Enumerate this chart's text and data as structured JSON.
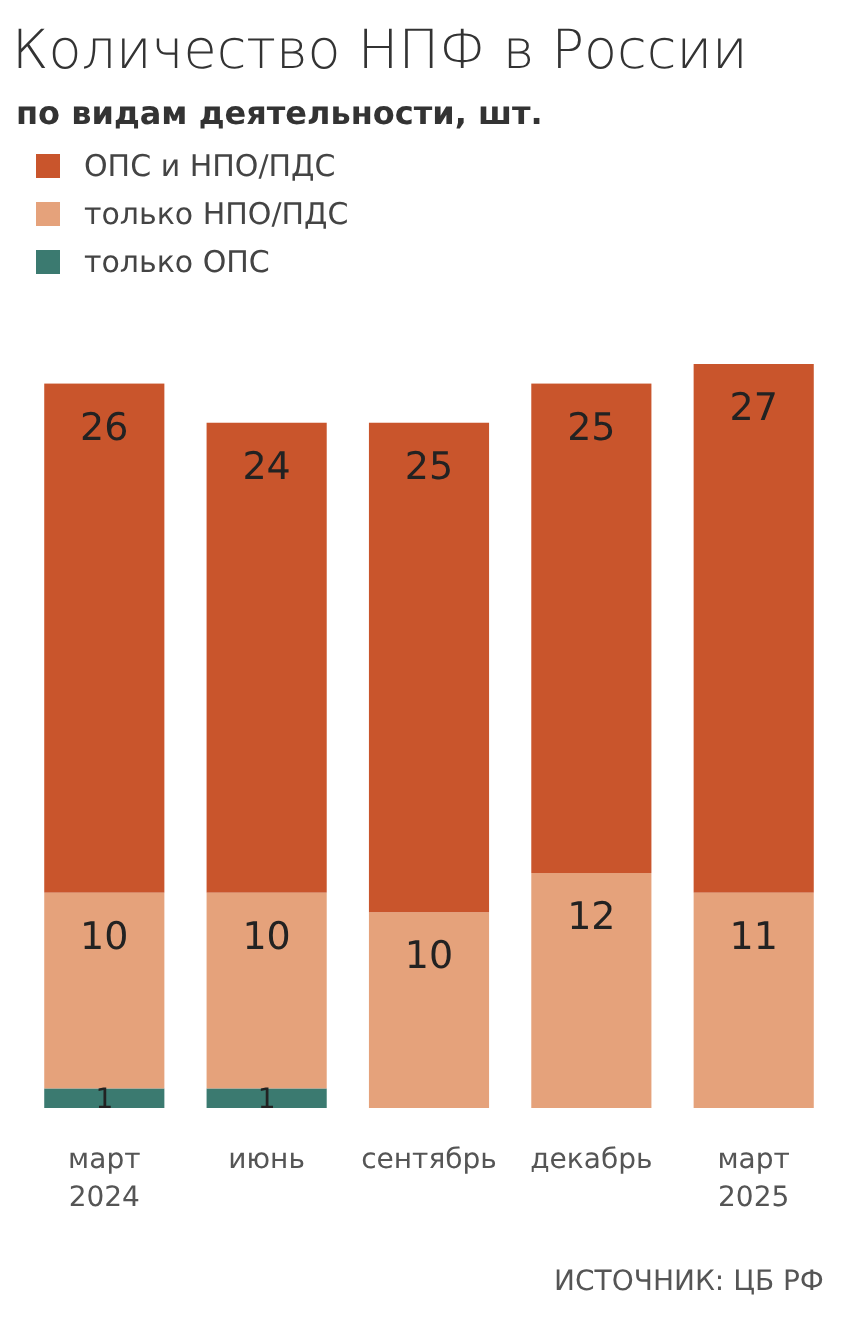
{
  "chart_data": {
    "type": "bar",
    "stacked": true,
    "title": "Количество НПФ в России",
    "subtitle": "по видам деятельности, шт.",
    "categories": [
      "март 2024",
      "июнь",
      "сентябрь",
      "декабрь",
      "март 2025"
    ],
    "series": [
      {
        "name": "только ОПС",
        "color": "#3b7a70",
        "values": [
          1,
          1,
          0,
          0,
          0
        ],
        "value_labels": [
          "1",
          "1",
          null,
          null,
          null
        ]
      },
      {
        "name": "только НПО/ПДС",
        "color": "#e5a27b",
        "values": [
          10,
          10,
          10,
          12,
          11
        ],
        "value_labels": [
          "10",
          "10",
          "10",
          "12",
          "11"
        ]
      },
      {
        "name": "ОПС и НПО/ПДС",
        "color": "#c9552c",
        "values": [
          26,
          24,
          25,
          25,
          27
        ],
        "value_labels": [
          "26",
          "24",
          "25",
          "25",
          "27"
        ]
      }
    ],
    "legend": "top left",
    "grid": false,
    "annotations": [
      "ИСТОЧНИК: ЦБ РФ"
    ]
  }
}
